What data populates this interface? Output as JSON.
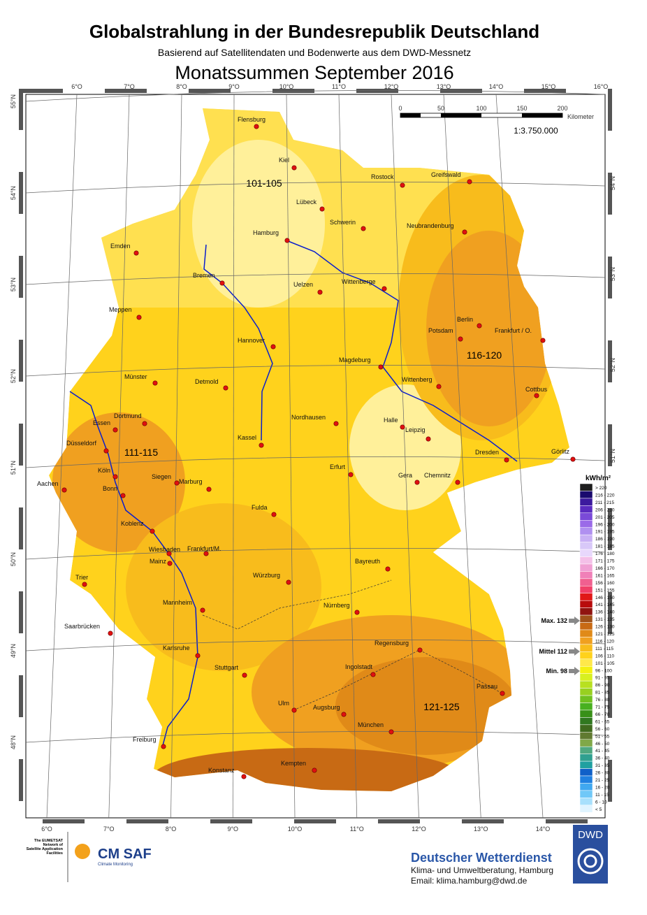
{
  "header": {
    "title": "Globalstrahlung in der Bundesrepublik Deutschland",
    "subtitle": "Basierend auf Satellitendaten und Bodenwerte aus dem DWD-Messnetz",
    "period": "Monatssummen September 2016"
  },
  "graticule": {
    "top": [
      "6°O",
      "7°O",
      "8°O",
      "9°O",
      "10°O",
      "11°O",
      "12°O",
      "13°O",
      "14°O",
      "15°O",
      "16°O"
    ],
    "bottom": [
      "6°O",
      "7°O",
      "8°O",
      "9°O",
      "10°O",
      "11°O",
      "12°O",
      "13°O",
      "14°O"
    ],
    "left": [
      "55°N",
      "54°N",
      "53°N",
      "52°N",
      "51°N",
      "50°N",
      "49°N",
      "48°N"
    ],
    "right": [
      "54°N",
      "53°N",
      "52°N",
      "51°N"
    ]
  },
  "scale": {
    "ticks": [
      "0",
      "50",
      "100",
      "150",
      "200"
    ],
    "unit": "Kilometer",
    "ratio": "1:3.750.000"
  },
  "cities": [
    "Flensburg",
    "Kiel",
    "Rostock",
    "Greifswald",
    "Lübeck",
    "Schwerin",
    "Neubrandenburg",
    "Hamburg",
    "Emden",
    "Bremen",
    "Uelzen",
    "Wittenberge",
    "Meppen",
    "Berlin",
    "Potsdam",
    "Frankfurt / O.",
    "Hannover",
    "Magdeburg",
    "Wittenberg",
    "Münster",
    "Detmold",
    "Cottbus",
    "Dortmund",
    "Essen",
    "Nordhausen",
    "Halle",
    "Leipzig",
    "Düsseldorf",
    "Kassel",
    "Dresden",
    "Görlitz",
    "Erfurt",
    "Gera",
    "Chemnitz",
    "Aachen",
    "Köln",
    "Bonn",
    "Siegen",
    "Marburg",
    "Fulda",
    "Koblenz",
    "Wiesbaden",
    "Frankfurt/M.",
    "Mainz",
    "Bayreuth",
    "Trier",
    "Würzburg",
    "Nürnberg",
    "Mannheim",
    "Saarbrücken",
    "Regensburg",
    "Karlsruhe",
    "Ingolstadt",
    "Stuttgart",
    "Passau",
    "Ulm",
    "Augsburg",
    "München",
    "Freiburg",
    "Kempten",
    "Konstanz"
  ],
  "zones": [
    "101-105",
    "116-120",
    "111-115",
    "121-125"
  ],
  "legend": {
    "unit": "kWh/m²",
    "classes": [
      {
        "label": "> 220",
        "color": "#1e1e1e"
      },
      {
        "label": "216 - 220",
        "color": "#1a0a6e"
      },
      {
        "label": "211 - 215",
        "color": "#3c1a9e"
      },
      {
        "label": "206 - 210",
        "color": "#5a2bc0"
      },
      {
        "label": "201 - 205",
        "color": "#7a4ad8"
      },
      {
        "label": "196 - 200",
        "color": "#9a6ae8"
      },
      {
        "label": "191 - 195",
        "color": "#b090f0"
      },
      {
        "label": "186 - 190",
        "color": "#c8b0f4"
      },
      {
        "label": "181 - 185",
        "color": "#d8c8f8"
      },
      {
        "label": "176 - 180",
        "color": "#e8d8fc"
      },
      {
        "label": "171 - 175",
        "color": "#f4c0e8"
      },
      {
        "label": "166 - 170",
        "color": "#f0a0d4"
      },
      {
        "label": "161 - 165",
        "color": "#f080b8"
      },
      {
        "label": "156 - 160",
        "color": "#f06090"
      },
      {
        "label": "151 - 155",
        "color": "#f04068"
      },
      {
        "label": "146 - 150",
        "color": "#e01818"
      },
      {
        "label": "141 - 145",
        "color": "#b80c0c"
      },
      {
        "label": "136 - 140",
        "color": "#901410"
      },
      {
        "label": "131 - 135",
        "color": "#a0521a"
      },
      {
        "label": "126 - 130",
        "color": "#c86a14"
      },
      {
        "label": "121 - 125",
        "color": "#e08a18"
      },
      {
        "label": "116 - 120",
        "color": "#f0a020"
      },
      {
        "label": "111 - 115",
        "color": "#f8bc1c"
      },
      {
        "label": "106 - 110",
        "color": "#ffd21c"
      },
      {
        "label": "101 - 105",
        "color": "#ffe84a"
      },
      {
        "label": "96 - 100",
        "color": "#f4f010"
      },
      {
        "label": "91 - 95",
        "color": "#d8f020"
      },
      {
        "label": "86 - 90",
        "color": "#b8e020"
      },
      {
        "label": "81 - 85",
        "color": "#98d020"
      },
      {
        "label": "76 - 80",
        "color": "#70c020"
      },
      {
        "label": "71 - 75",
        "color": "#48b020"
      },
      {
        "label": "66 - 70",
        "color": "#389018"
      },
      {
        "label": "61 - 65",
        "color": "#307820"
      },
      {
        "label": "56 - 60",
        "color": "#3f6a1e"
      },
      {
        "label": "51 - 55",
        "color": "#607a30"
      },
      {
        "label": "46 - 50",
        "color": "#80a848"
      },
      {
        "label": "41 - 45",
        "color": "#50a880"
      },
      {
        "label": "36 - 40",
        "color": "#30a090"
      },
      {
        "label": "31 - 35",
        "color": "#20a0a0"
      },
      {
        "label": "26 - 30",
        "color": "#1060c8"
      },
      {
        "label": "21 - 25",
        "color": "#2080e0"
      },
      {
        "label": "16 - 20",
        "color": "#40a8f0"
      },
      {
        "label": "11 - 15",
        "color": "#70c8f8"
      },
      {
        "label": "6 - 10",
        "color": "#a8e0fc"
      },
      {
        "label": "< 5",
        "color": "#e0f4ff"
      }
    ]
  },
  "markers": [
    "Max. 132",
    "Mittel 112",
    "Min. 98"
  ],
  "footer": {
    "eumetsat": [
      "The EUMETSAT",
      "Network of",
      "Satellite Application",
      "Facilities"
    ],
    "cmsaf": "CM SAF",
    "cmsaf_sub": "Climate Monitoring",
    "dwd": "Deutscher Wetterdienst",
    "line1": "Klima- und Umweltberatung, Hamburg",
    "line2": "Email: klima.hamburg@dwd.de",
    "logo": "DWD"
  }
}
